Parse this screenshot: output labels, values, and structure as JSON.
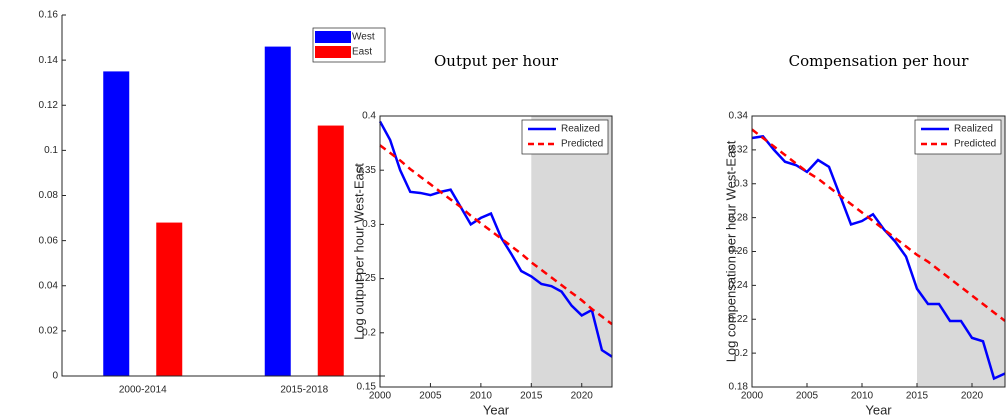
{
  "chart_data": [
    {
      "type": "bar",
      "categories": [
        "2000-2014",
        "2015-2018"
      ],
      "series": [
        {
          "name": "West",
          "color": "#0000ff",
          "values": [
            0.135,
            0.146
          ]
        },
        {
          "name": "East",
          "color": "#ff0000",
          "values": [
            0.068,
            0.111
          ]
        }
      ],
      "ylim": [
        0,
        0.16
      ],
      "yticks": [
        0,
        0.02,
        0.04,
        0.06,
        0.08,
        0.1,
        0.12,
        0.14,
        0.16
      ],
      "legend": "northeast"
    },
    {
      "type": "line",
      "title": "Output per hour",
      "xlabel": "Year",
      "ylabel": "Log output per hour West-East",
      "x": [
        2000,
        2001,
        2002,
        2003,
        2004,
        2005,
        2006,
        2007,
        2008,
        2009,
        2010,
        2011,
        2012,
        2013,
        2014,
        2015,
        2016,
        2017,
        2018,
        2019,
        2020,
        2021,
        2022,
        2023
      ],
      "series": [
        {
          "name": "Realized",
          "color": "#0000ff",
          "dashed": false,
          "values": [
            0.395,
            0.378,
            0.35,
            0.33,
            0.329,
            0.327,
            0.33,
            0.332,
            0.316,
            0.3,
            0.306,
            0.31,
            0.288,
            0.273,
            0.257,
            0.252,
            0.245,
            0.243,
            0.238,
            0.225,
            0.216,
            0.221,
            0.184,
            0.178
          ]
        },
        {
          "name": "Predicted",
          "color": "#ff0000",
          "dashed": true,
          "values": [
            0.373,
            0.366,
            0.359,
            0.351,
            0.344,
            0.337,
            0.33,
            0.323,
            0.316,
            0.308,
            0.301,
            0.294,
            0.287,
            0.28,
            0.273,
            0.265,
            0.258,
            0.251,
            0.244,
            0.237,
            0.23,
            0.222,
            0.215,
            0.208
          ]
        }
      ],
      "xlim": [
        2000,
        2023
      ],
      "xticks": [
        2000,
        2005,
        2010,
        2015,
        2020
      ],
      "ylim": [
        0.15,
        0.4
      ],
      "yticks": [
        0.15,
        0.2,
        0.25,
        0.3,
        0.35,
        0.4
      ],
      "shaded_x": [
        2015,
        2023
      ],
      "legend": "northeast"
    },
    {
      "type": "line",
      "title": "Compensation per hour",
      "xlabel": "Year",
      "ylabel": "Log compensation per hour West-East",
      "x": [
        2000,
        2001,
        2002,
        2003,
        2004,
        2005,
        2006,
        2007,
        2008,
        2009,
        2010,
        2011,
        2012,
        2013,
        2014,
        2015,
        2016,
        2017,
        2018,
        2019,
        2020,
        2021,
        2022,
        2023
      ],
      "series": [
        {
          "name": "Realized",
          "color": "#0000ff",
          "dashed": false,
          "values": [
            0.327,
            0.328,
            0.32,
            0.313,
            0.311,
            0.307,
            0.314,
            0.31,
            0.293,
            0.276,
            0.278,
            0.282,
            0.273,
            0.266,
            0.257,
            0.238,
            0.229,
            0.229,
            0.219,
            0.219,
            0.209,
            0.207,
            0.185,
            0.188
          ]
        },
        {
          "name": "Predicted",
          "color": "#ff0000",
          "dashed": true,
          "values": [
            0.332,
            0.327,
            0.322,
            0.317,
            0.312,
            0.307,
            0.303,
            0.298,
            0.293,
            0.288,
            0.283,
            0.278,
            0.273,
            0.268,
            0.263,
            0.258,
            0.254,
            0.249,
            0.244,
            0.239,
            0.234,
            0.229,
            0.224,
            0.219
          ]
        }
      ],
      "xlim": [
        2000,
        2023
      ],
      "xticks": [
        2000,
        2005,
        2010,
        2015,
        2020
      ],
      "ylim": [
        0.18,
        0.34
      ],
      "yticks": [
        0.18,
        0.2,
        0.22,
        0.24,
        0.26,
        0.28,
        0.3,
        0.32,
        0.34
      ],
      "shaded_x": [
        2015,
        2023
      ],
      "legend": "northeast"
    }
  ]
}
